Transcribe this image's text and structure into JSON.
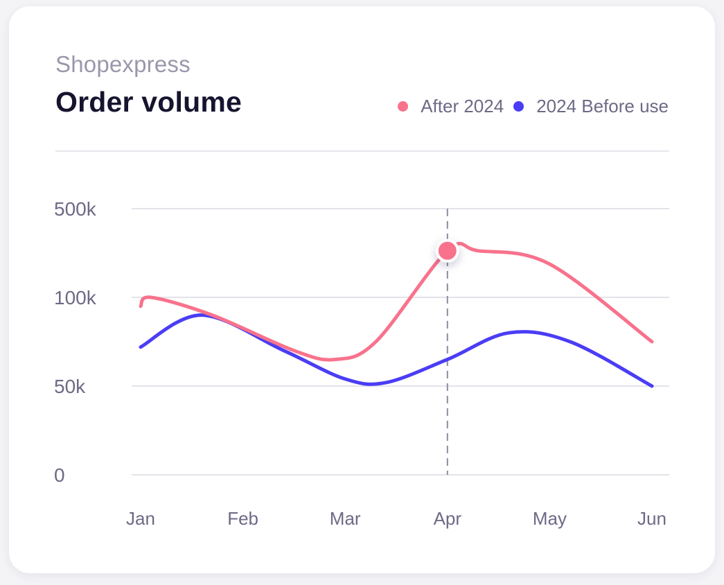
{
  "header": {
    "subtitle": "Shopexpress",
    "title": "Order volume"
  },
  "legend": [
    {
      "label": "After 2024",
      "color": "#f8728c"
    },
    {
      "label": "2024 Before use",
      "color": "#4a3df5"
    }
  ],
  "chart_data": {
    "type": "line",
    "categories": [
      "Jan",
      "Feb",
      "Mar",
      "Apr",
      "May",
      "Jun"
    ],
    "y_ticks": [
      "0",
      "50k",
      "100k",
      "500k"
    ],
    "series": [
      {
        "name": "After 2024",
        "color": "#f8728c",
        "x": [
          0,
          0.1,
          0.7,
          1.5,
          1.9,
          2.3,
          3.0,
          3.3,
          4.0,
          5.0
        ],
        "y": [
          95000,
          100000,
          90000,
          70000,
          65000,
          75000,
          310000,
          310000,
          250000,
          75000
        ]
      },
      {
        "name": "2024 Before use",
        "color": "#4a3df5",
        "x": [
          0,
          0.6,
          1.4,
          2.0,
          2.4,
          3.0,
          3.6,
          4.2,
          5.0
        ],
        "y": [
          72000,
          90000,
          70000,
          54000,
          52000,
          65000,
          80000,
          75000,
          50000
        ]
      }
    ],
    "highlight": {
      "category": "Apr",
      "series": "After 2024"
    },
    "grid": true
  }
}
